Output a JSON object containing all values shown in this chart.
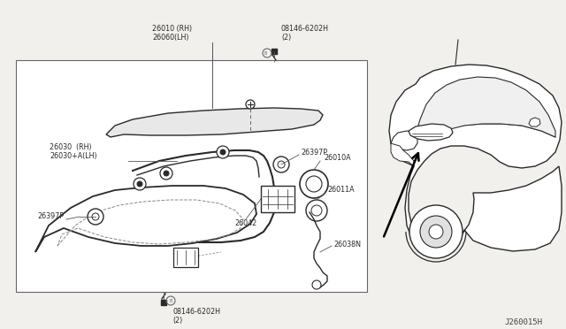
{
  "bg_color": "#f2f0ed",
  "line_color": "#2a2a2a",
  "text_color": "#2a2a2a",
  "diagram_title": "J260015H",
  "label_fontsize": 5.8,
  "labels": {
    "part_26010": "26010 (RH)\n26060(LH)",
    "part_08146_top": "08146-6202H\n(2)",
    "part_26030": "26030  (RH)\n26030+A(LH)",
    "part_26397P_left": "26397P",
    "part_26397P_right": "26397P",
    "part_26010A": "26010A",
    "part_26011A": "26011A",
    "part_26042": "26042",
    "part_26038N": "26038N",
    "part_08146_bot": "08146-6202H\n(2)"
  }
}
